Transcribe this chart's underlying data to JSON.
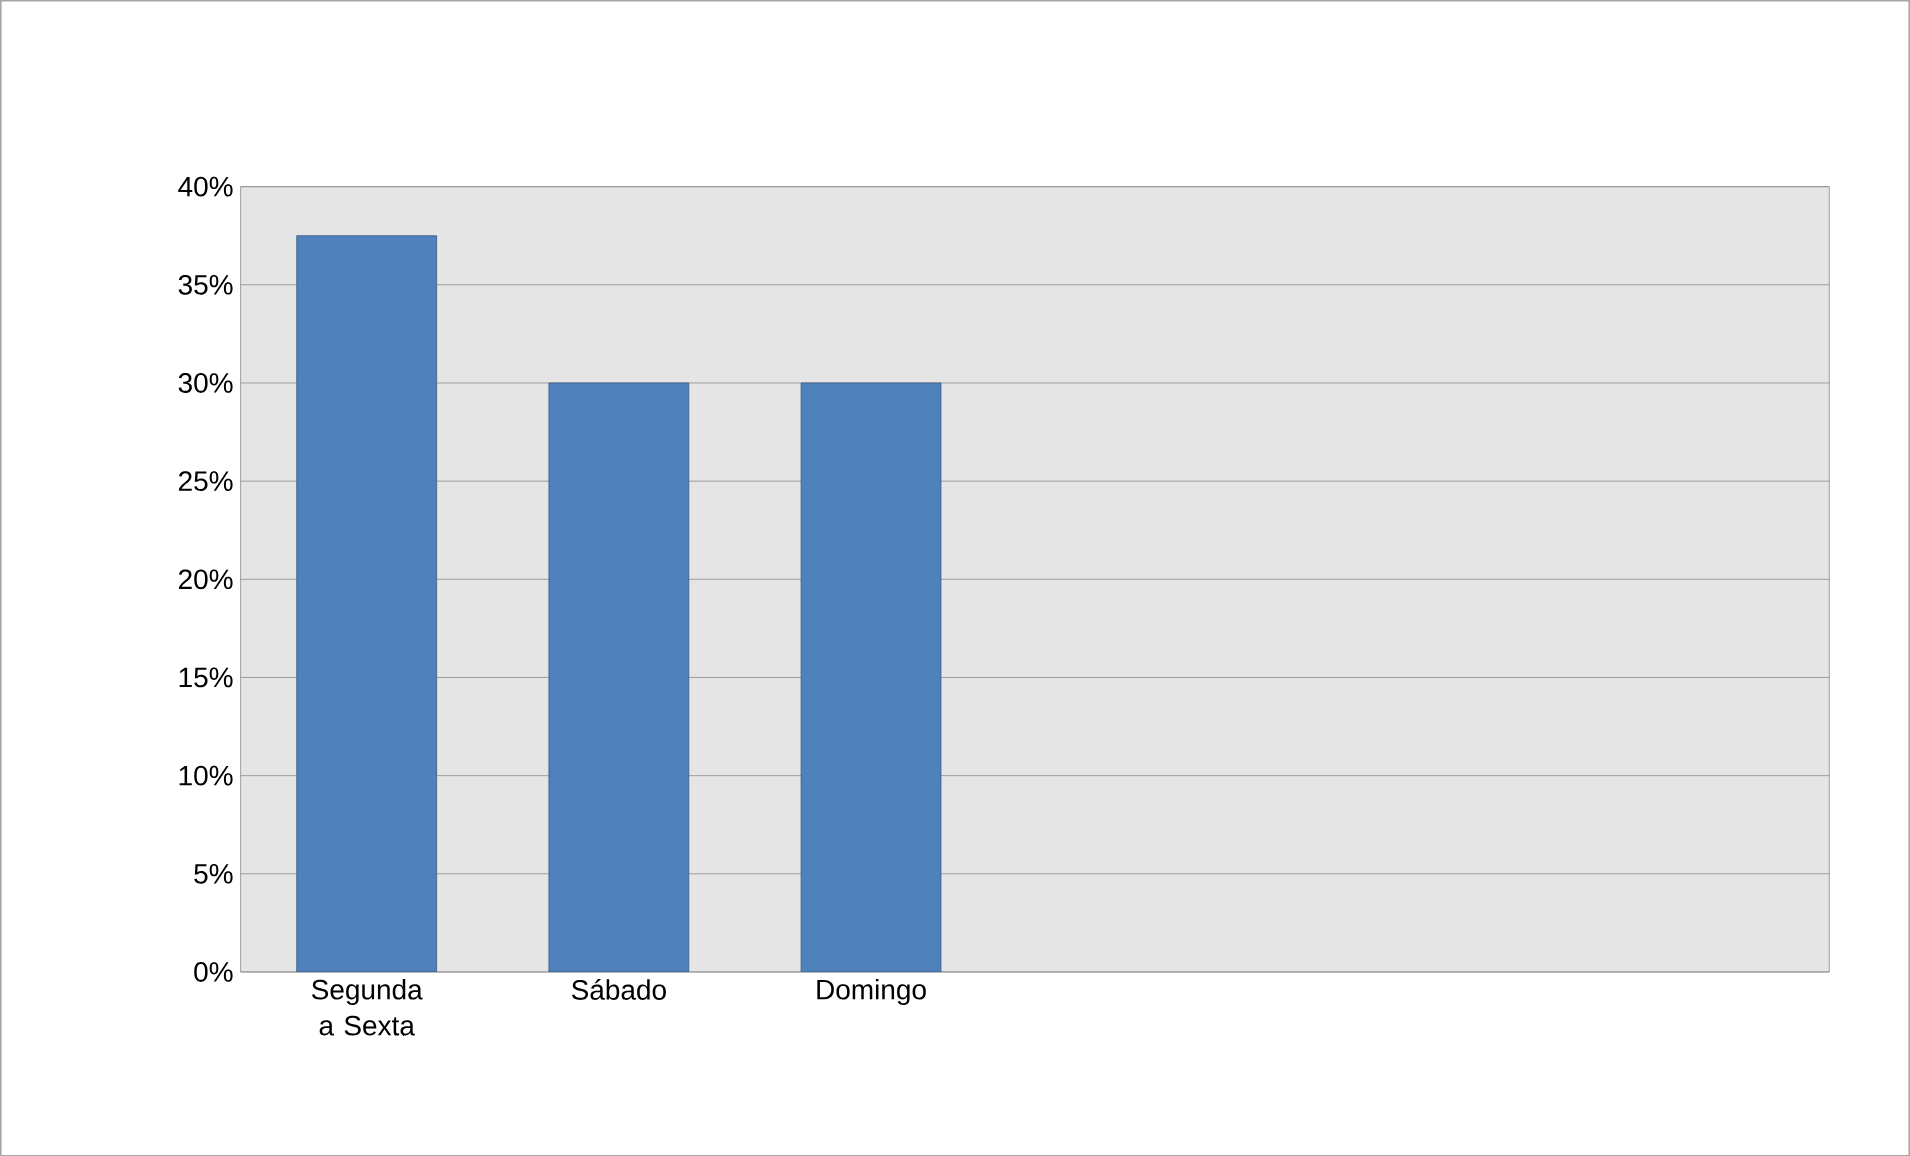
{
  "chart_data": {
    "type": "bar",
    "categories": [
      "Segunda a Sexta",
      "Sábado",
      "Domingo"
    ],
    "values": [
      37.5,
      30,
      30
    ],
    "color": "#4f81bd",
    "ylim": [
      0,
      40
    ],
    "yticks": [
      {
        "value": 0,
        "label": "0%"
      },
      {
        "value": 5,
        "label": "5%"
      },
      {
        "value": 10,
        "label": "10%"
      },
      {
        "value": 15,
        "label": "15%"
      },
      {
        "value": 20,
        "label": "20%"
      },
      {
        "value": 25,
        "label": "25%"
      },
      {
        "value": 30,
        "label": "30%"
      },
      {
        "value": 35,
        "label": "35%"
      },
      {
        "value": 40,
        "label": "40%"
      }
    ],
    "grid": "y"
  }
}
